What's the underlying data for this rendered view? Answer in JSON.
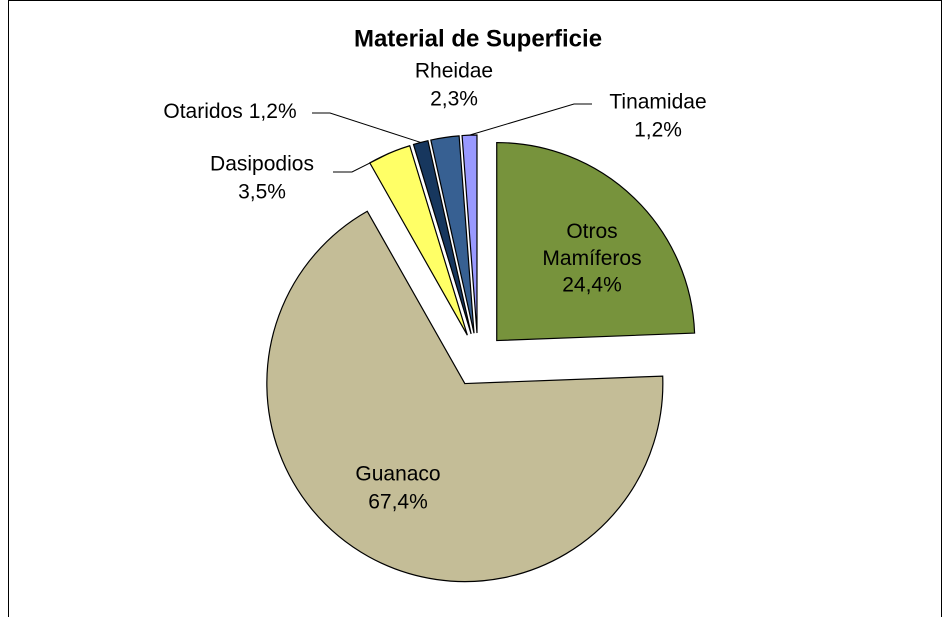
{
  "chart_data": {
    "type": "pie",
    "title": "Material de Superficie",
    "categories": [
      "Otros Mamíferos",
      "Guanaco",
      "Dasipodios",
      "Otaridos",
      "Rheidae",
      "Tinamidae"
    ],
    "values": [
      24.4,
      67.4,
      3.5,
      1.2,
      2.3,
      1.2
    ],
    "value_labels": [
      "24,4%",
      "67,4%",
      "3,5%",
      "1,2%",
      "2,3%",
      "1,2%"
    ],
    "colors": [
      "#77933c",
      "#c4bd97",
      "#ffff66",
      "#17375e",
      "#376092",
      "#9999ff"
    ]
  }
}
